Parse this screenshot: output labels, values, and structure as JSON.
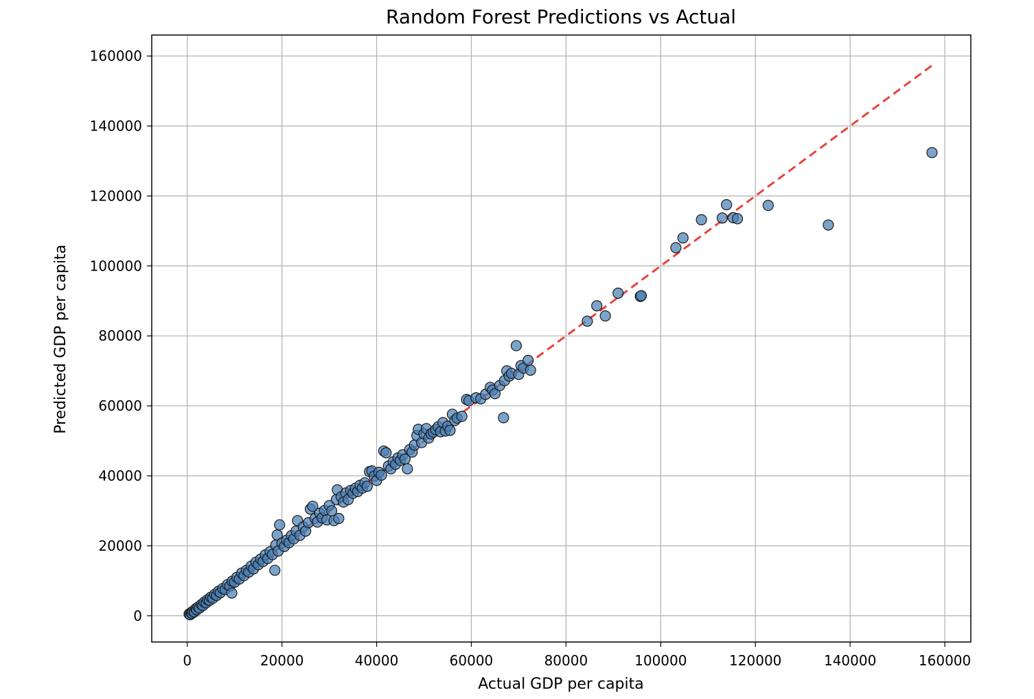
{
  "chart_data": {
    "type": "scatter",
    "title": "Random Forest Predictions vs Actual",
    "xlabel": "Actual GDP per capita",
    "ylabel": "Predicted GDP per capita",
    "xlim": [
      -7500,
      165500
    ],
    "ylim": [
      -7500,
      166000
    ],
    "xticks": [
      0,
      20000,
      40000,
      60000,
      80000,
      100000,
      120000,
      140000,
      160000
    ],
    "yticks": [
      0,
      20000,
      40000,
      60000,
      80000,
      100000,
      120000,
      140000,
      160000
    ],
    "grid": true,
    "colors": {
      "point_fill": "#4a7fb5",
      "point_edge": "#1a1a1a",
      "reference_line": "#e8423a"
    },
    "reference_line": {
      "x": [
        700,
        157500
      ],
      "y": [
        700,
        157500
      ]
    },
    "points": [
      [
        400,
        500
      ],
      [
        600,
        300
      ],
      [
        800,
        900
      ],
      [
        1000,
        700
      ],
      [
        1200,
        1300
      ],
      [
        1500,
        1100
      ],
      [
        1800,
        2000
      ],
      [
        2000,
        1700
      ],
      [
        2300,
        2500
      ],
      [
        2600,
        2200
      ],
      [
        3000,
        3200
      ],
      [
        3300,
        2900
      ],
      [
        3600,
        3900
      ],
      [
        4000,
        3700
      ],
      [
        4300,
        4600
      ],
      [
        4700,
        4400
      ],
      [
        5000,
        5300
      ],
      [
        5400,
        5000
      ],
      [
        5800,
        6100
      ],
      [
        6200,
        5800
      ],
      [
        6600,
        7000
      ],
      [
        7000,
        6600
      ],
      [
        7500,
        7800
      ],
      [
        8000,
        7500
      ],
      [
        8500,
        8900
      ],
      [
        9000,
        8500
      ],
      [
        9400,
        6500
      ],
      [
        9500,
        9900
      ],
      [
        10000,
        9600
      ],
      [
        10500,
        11000
      ],
      [
        11000,
        10500
      ],
      [
        11500,
        12200
      ],
      [
        12000,
        11500
      ],
      [
        12500,
        13000
      ],
      [
        13000,
        12500
      ],
      [
        13500,
        14200
      ],
      [
        14000,
        13400
      ],
      [
        14500,
        15300
      ],
      [
        15000,
        14600
      ],
      [
        15500,
        16200
      ],
      [
        16000,
        15500
      ],
      [
        16500,
        17400
      ],
      [
        17000,
        16400
      ],
      [
        17500,
        18300
      ],
      [
        18000,
        17500
      ],
      [
        18500,
        13000
      ],
      [
        18700,
        20200
      ],
      [
        19000,
        23100
      ],
      [
        19500,
        26000
      ],
      [
        19200,
        18500
      ],
      [
        20000,
        20800
      ],
      [
        20500,
        19800
      ],
      [
        21000,
        21600
      ],
      [
        21500,
        20900
      ],
      [
        22000,
        22900
      ],
      [
        22500,
        22000
      ],
      [
        23000,
        24200
      ],
      [
        23300,
        27200
      ],
      [
        23800,
        23000
      ],
      [
        24500,
        25400
      ],
      [
        25000,
        24200
      ],
      [
        25600,
        26600
      ],
      [
        26000,
        30500
      ],
      [
        26500,
        31300
      ],
      [
        27000,
        27800
      ],
      [
        27500,
        26800
      ],
      [
        28000,
        29300
      ],
      [
        28500,
        28000
      ],
      [
        29000,
        30100
      ],
      [
        29500,
        27400
      ],
      [
        30000,
        31500
      ],
      [
        30500,
        30000
      ],
      [
        31000,
        27200
      ],
      [
        31500,
        33200
      ],
      [
        31700,
        36000
      ],
      [
        32000,
        27800
      ],
      [
        32500,
        34000
      ],
      [
        33000,
        32500
      ],
      [
        33500,
        35100
      ],
      [
        34000,
        33200
      ],
      [
        34500,
        35800
      ],
      [
        35000,
        35000
      ],
      [
        35500,
        36400
      ],
      [
        36000,
        35500
      ],
      [
        36500,
        37300
      ],
      [
        37000,
        36500
      ],
      [
        37500,
        38000
      ],
      [
        38000,
        37000
      ],
      [
        38500,
        41200
      ],
      [
        39000,
        41400
      ],
      [
        39500,
        39900
      ],
      [
        40000,
        38700
      ],
      [
        40500,
        41000
      ],
      [
        41000,
        40200
      ],
      [
        41500,
        47100
      ],
      [
        42000,
        46600
      ],
      [
        42500,
        42800
      ],
      [
        43000,
        42000
      ],
      [
        43500,
        44000
      ],
      [
        44000,
        43300
      ],
      [
        44500,
        45100
      ],
      [
        45000,
        44400
      ],
      [
        45500,
        46000
      ],
      [
        46000,
        44800
      ],
      [
        46500,
        42000
      ],
      [
        47000,
        47500
      ],
      [
        47500,
        46800
      ],
      [
        48000,
        48800
      ],
      [
        48500,
        51500
      ],
      [
        48800,
        53300
      ],
      [
        49500,
        49500
      ],
      [
        50000,
        52000
      ],
      [
        50500,
        53500
      ],
      [
        51000,
        50800
      ],
      [
        51500,
        52000
      ],
      [
        52000,
        52500
      ],
      [
        52500,
        53200
      ],
      [
        53000,
        54000
      ],
      [
        53500,
        52600
      ],
      [
        54000,
        55200
      ],
      [
        54500,
        52800
      ],
      [
        55000,
        54200
      ],
      [
        55500,
        53000
      ],
      [
        56000,
        57600
      ],
      [
        56500,
        55800
      ],
      [
        57000,
        56500
      ],
      [
        58000,
        57000
      ],
      [
        59000,
        61800
      ],
      [
        59500,
        61500
      ],
      [
        61000,
        62300
      ],
      [
        62000,
        62000
      ],
      [
        63000,
        63300
      ],
      [
        64000,
        65300
      ],
      [
        64500,
        64500
      ],
      [
        65000,
        63500
      ],
      [
        66000,
        65800
      ],
      [
        66800,
        56600
      ],
      [
        67000,
        67200
      ],
      [
        67500,
        70000
      ],
      [
        68000,
        68500
      ],
      [
        68500,
        69300
      ],
      [
        69500,
        77200
      ],
      [
        70000,
        69000
      ],
      [
        70500,
        71500
      ],
      [
        71000,
        70800
      ],
      [
        72000,
        73000
      ],
      [
        72500,
        70200
      ],
      [
        84500,
        84200
      ],
      [
        86500,
        88600
      ],
      [
        88300,
        85700
      ],
      [
        91000,
        92200
      ],
      [
        95700,
        91300
      ],
      [
        95900,
        91500
      ],
      [
        103200,
        105200
      ],
      [
        104700,
        108000
      ],
      [
        108600,
        113200
      ],
      [
        113000,
        113700
      ],
      [
        113900,
        117500
      ],
      [
        115300,
        113800
      ],
      [
        116200,
        113500
      ],
      [
        122700,
        117300
      ],
      [
        135400,
        111700
      ],
      [
        157300,
        132400
      ]
    ]
  }
}
